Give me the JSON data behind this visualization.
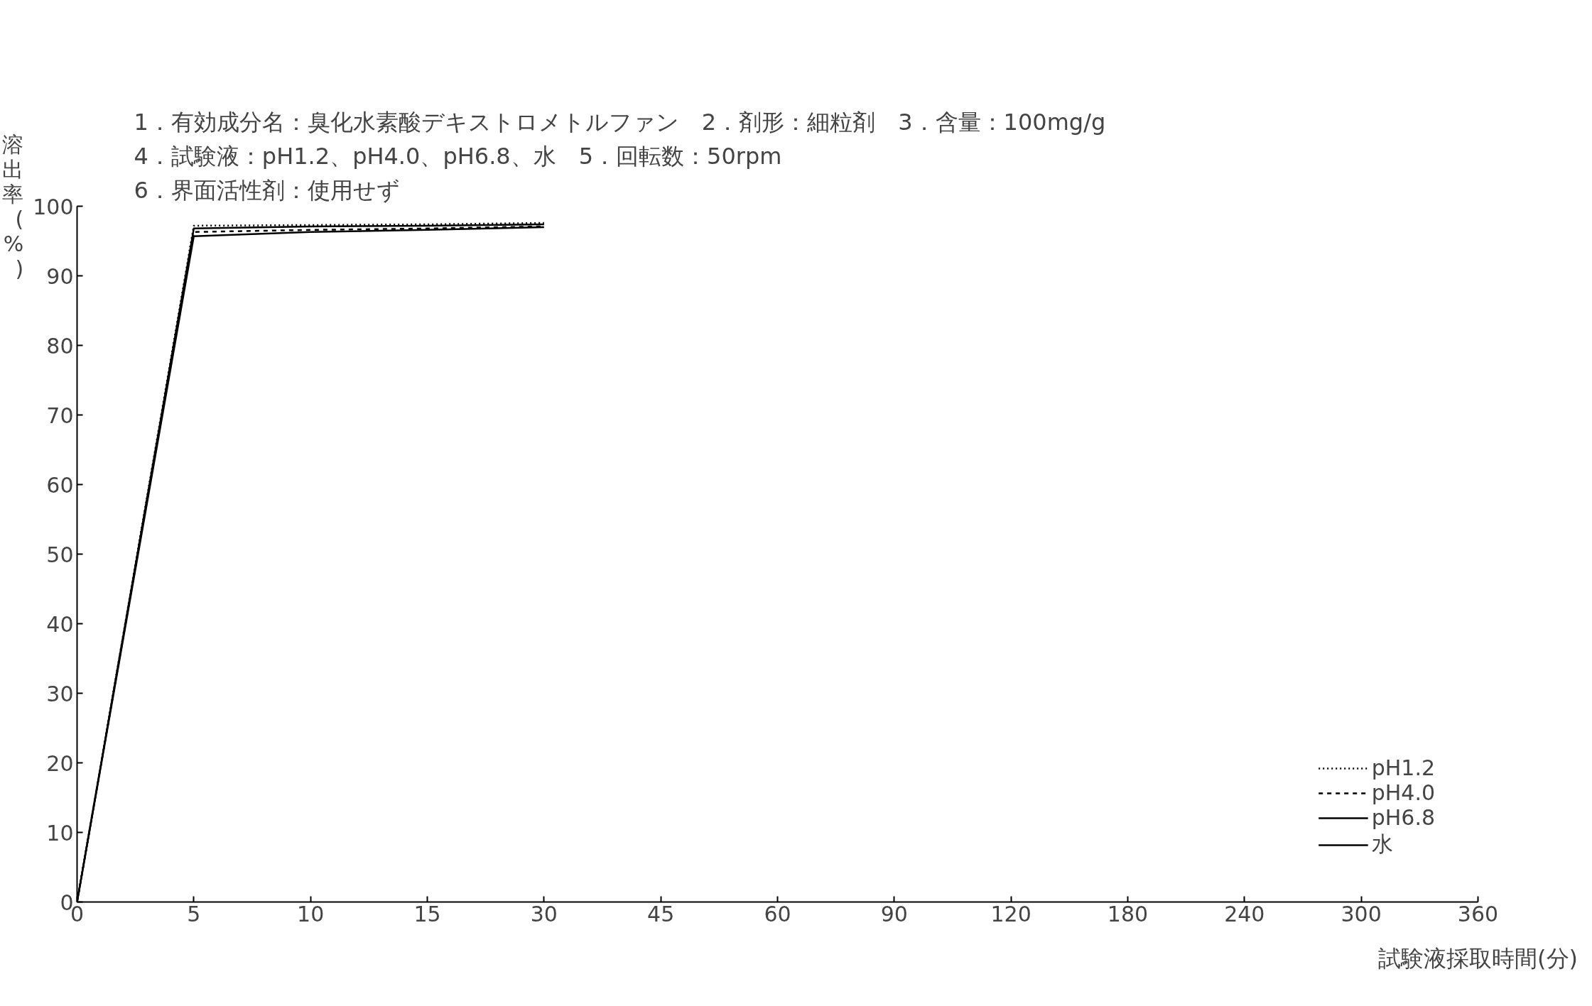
{
  "chart_data": {
    "type": "line",
    "title": "1．有効成分名：臭化水素酸デキストロメトルファン　2．剤形：細粒剤　3．含量：100mg/g",
    "subtitle": "4．試験液：pH1.2、pH4.0、pH6.8、水　5．回転数：50rpm",
    "annotations": [
      "6．界面活性剤：使用せず"
    ],
    "xlabel": "試験液採取時間(分)",
    "ylabel": "溶出率(%)",
    "categories": [
      "0",
      "5",
      "10",
      "15",
      "30",
      "45",
      "60",
      "90",
      "120",
      "180",
      "240",
      "300",
      "360"
    ],
    "ylim": [
      0,
      100
    ],
    "yticks": [
      0,
      10,
      20,
      30,
      40,
      50,
      60,
      70,
      80,
      90,
      100
    ],
    "grid": false,
    "legend": "bottom right",
    "marker": "none",
    "series": [
      {
        "name": "pH1.2",
        "color": "#000000",
        "line_style": "dotted",
        "values": [
          0,
          97.2,
          97.3,
          97.4,
          97.6,
          null,
          null,
          null,
          null,
          null,
          null,
          null,
          null
        ]
      },
      {
        "name": "pH4.0",
        "color": "#000000",
        "line_style": "dashed",
        "values": [
          0,
          96.3,
          96.6,
          96.8,
          97.1,
          null,
          null,
          null,
          null,
          null,
          null,
          null,
          null
        ]
      },
      {
        "name": "pH6.8",
        "color": "#000000",
        "line_style": "solid",
        "values": [
          0,
          96.8,
          97.1,
          97.2,
          97.4,
          null,
          null,
          null,
          null,
          null,
          null,
          null,
          null
        ]
      },
      {
        "name": "水",
        "color": "#000000",
        "line_style": "solid",
        "values": [
          0,
          95.7,
          96.3,
          96.6,
          97.0,
          null,
          null,
          null,
          null,
          null,
          null,
          null,
          null
        ]
      }
    ]
  }
}
